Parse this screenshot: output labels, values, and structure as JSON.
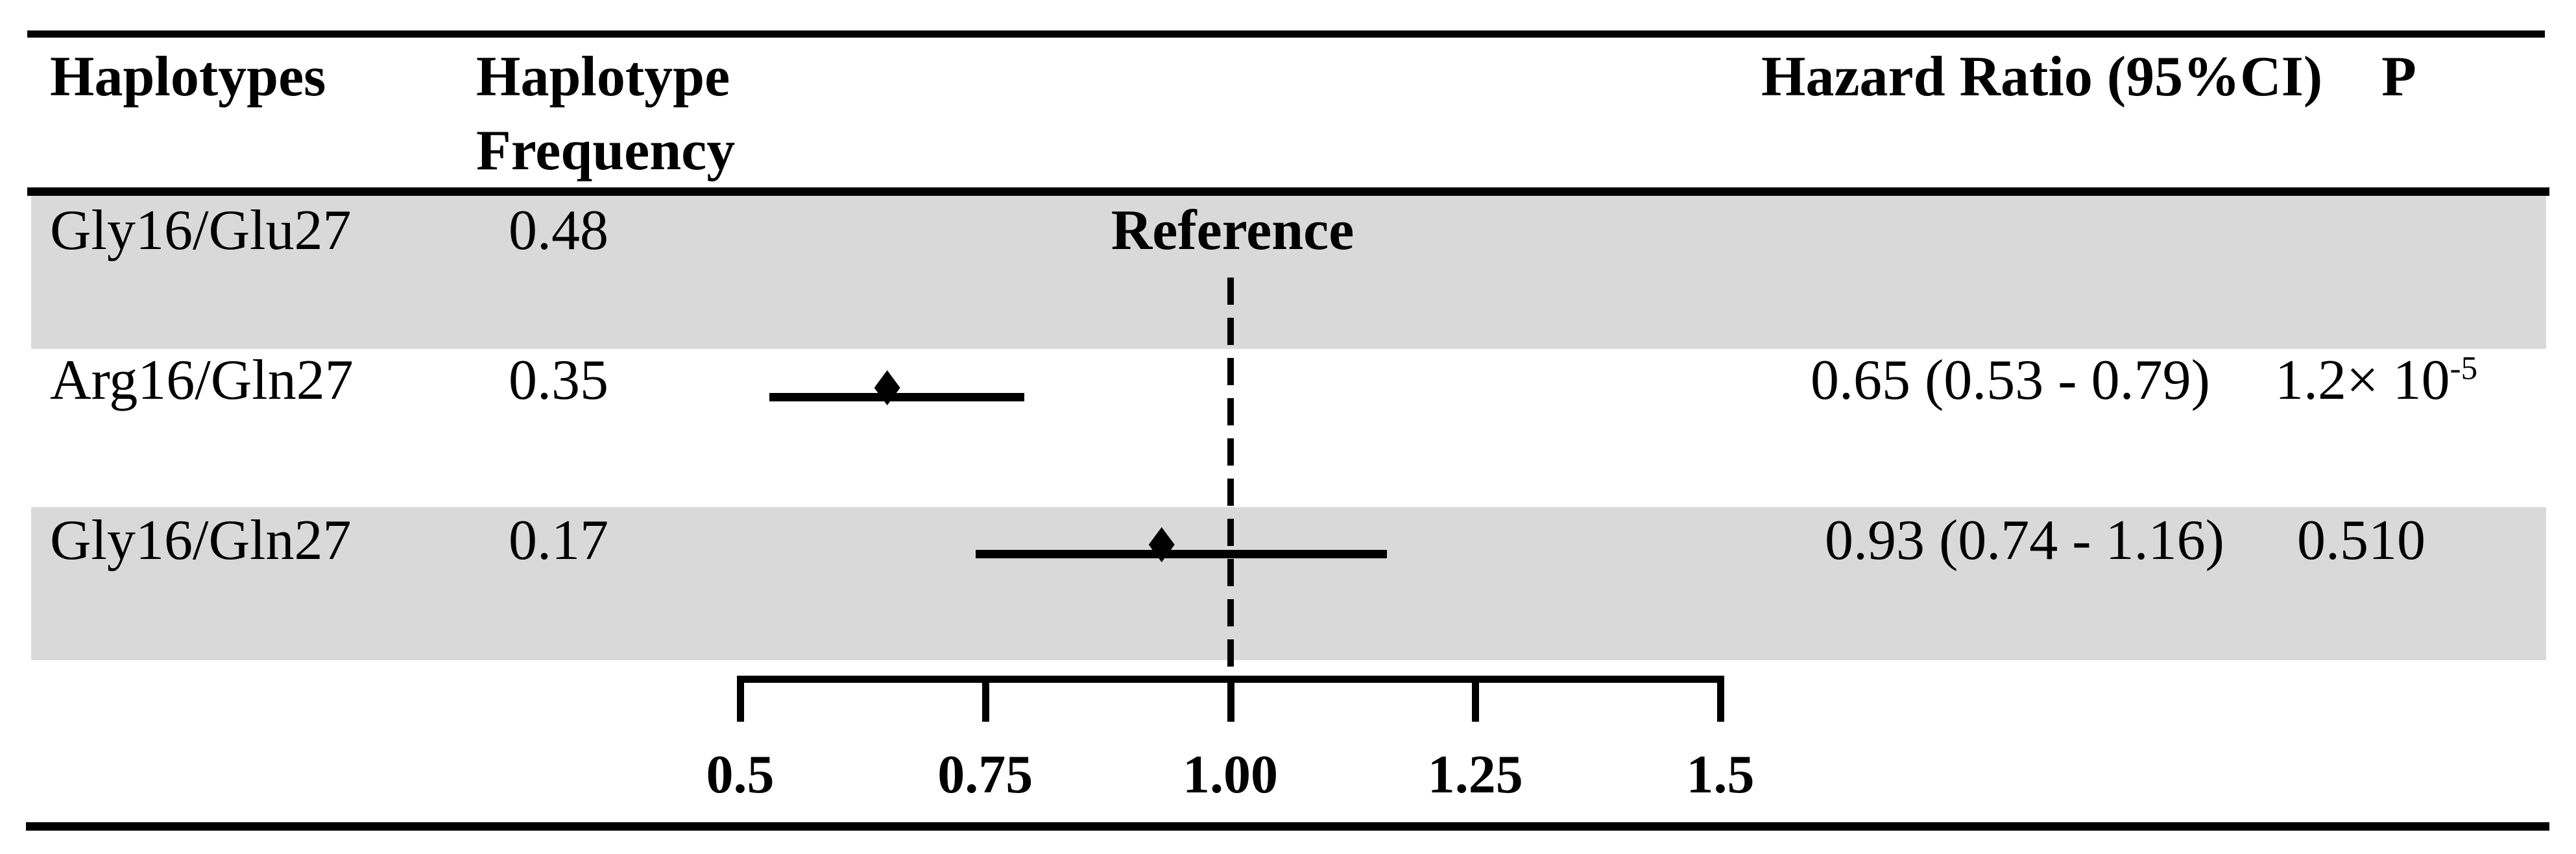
{
  "header": {
    "col_haplotypes": "Haplotypes",
    "col_frequency_line1": "Haplotype",
    "col_frequency_line2": "Frequency",
    "col_hazard_ratio": "Hazard Ratio (95%CI)",
    "col_p": "P"
  },
  "rows": [
    {
      "haplotype": "Gly16/Glu27",
      "frequency": "0.48",
      "note": "Reference",
      "hr_ci": "",
      "p_base": "",
      "p_sup": ""
    },
    {
      "haplotype": "Arg16/Gln27",
      "frequency": "0.35",
      "note": "",
      "hr_ci": "0.65 (0.53 - 0.79)",
      "p_base": "1.2× 10",
      "p_sup": "-5"
    },
    {
      "haplotype": "Gly16/Gln27",
      "frequency": "0.17",
      "note": "",
      "hr_ci": "0.93 (0.74 - 1.16)",
      "p_base": "0.510",
      "p_sup": ""
    }
  ],
  "chart_data": {
    "type": "forest",
    "title": "",
    "rows": [
      {
        "label": "Gly16/Glu27",
        "frequency": 0.48,
        "reference": true,
        "hr": null,
        "ci_low": null,
        "ci_high": null,
        "p": null
      },
      {
        "label": "Arg16/Gln27",
        "frequency": 0.35,
        "reference": false,
        "hr": 0.65,
        "ci_low": 0.53,
        "ci_high": 0.79,
        "p": 1.2e-05
      },
      {
        "label": "Gly16/Gln27",
        "frequency": 0.17,
        "reference": false,
        "hr": 0.93,
        "ci_low": 0.74,
        "ci_high": 1.16,
        "p": 0.51
      }
    ],
    "x_axis": {
      "min": 0.5,
      "max": 1.5,
      "ticks": [
        0.5,
        0.75,
        1.0,
        1.25,
        1.5
      ],
      "tick_labels": [
        "0.5",
        "0.75",
        "1.00",
        "1.25",
        "1.5"
      ],
      "reference_line": 1.0,
      "grid": false
    },
    "legend": null,
    "colors": {
      "marker": "#000000",
      "row_shading": "#d9d9d9",
      "background": "#ffffff",
      "text": "#000000"
    }
  }
}
